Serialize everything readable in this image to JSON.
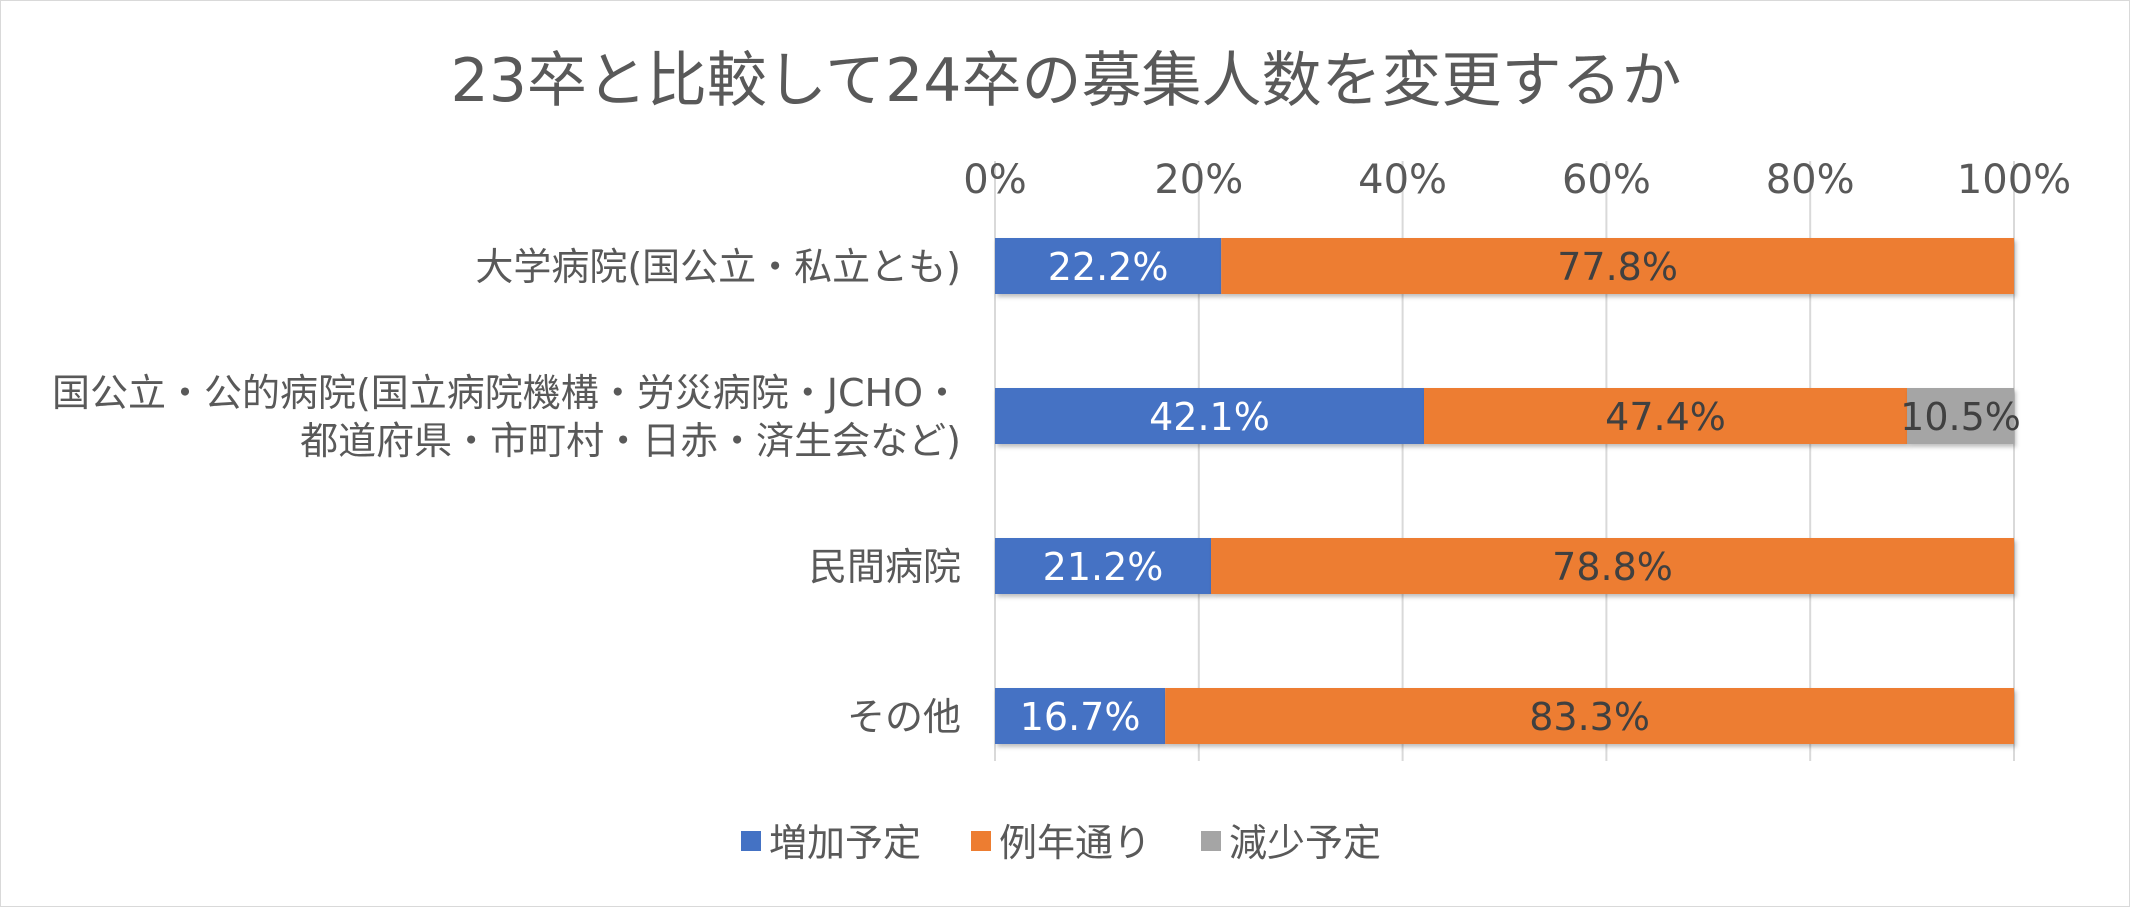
{
  "chart_data": {
    "type": "bar",
    "orientation": "horizontal",
    "stacked": "percent",
    "title": "23卒と比較して24卒の募集人数を変更するか",
    "categories": [
      [
        "大学病院(国公立・私立とも)"
      ],
      [
        "国公立・公的病院(国立病院機構・労災病院・JCHO・",
        "都道府県・市町村・日赤・済生会など)"
      ],
      [
        "民間病院"
      ],
      [
        "その他"
      ]
    ],
    "series": [
      {
        "name": "増加予定",
        "color": "#4472c4",
        "values": [
          22.2,
          42.1,
          21.2,
          16.7
        ],
        "labels": [
          "22.2%",
          "42.1%",
          "21.2%",
          "16.7%"
        ]
      },
      {
        "name": "例年通り",
        "color": "#ed7d31",
        "values": [
          77.8,
          47.4,
          78.8,
          83.3
        ],
        "labels": [
          "77.8%",
          "47.4%",
          "78.8%",
          "83.3%"
        ]
      },
      {
        "name": "減少予定",
        "color": "#a5a5a5",
        "values": [
          0,
          10.5,
          0,
          0
        ],
        "labels": [
          "",
          "10.5%",
          "",
          ""
        ]
      }
    ],
    "x_ticks": [
      "0%",
      "20%",
      "40%",
      "60%",
      "80%",
      "100%"
    ],
    "xlim": [
      0,
      100
    ],
    "x_axis_position": "top",
    "grid": true,
    "legend_position": "bottom"
  }
}
